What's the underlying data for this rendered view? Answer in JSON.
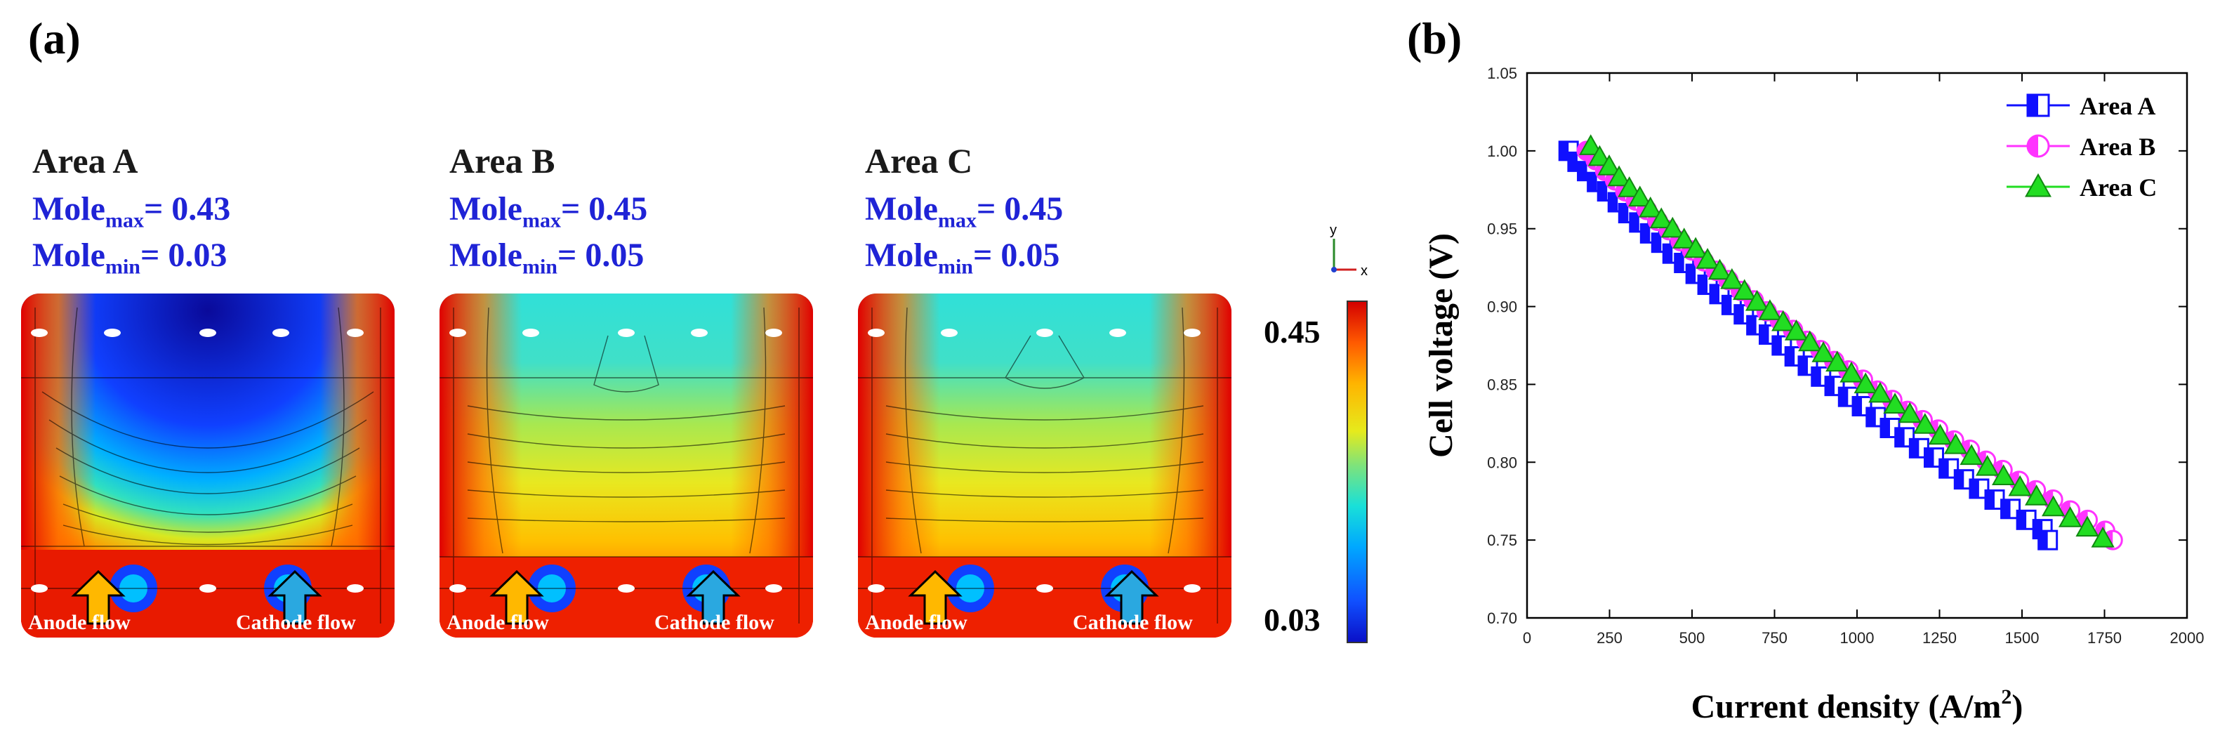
{
  "panel_a_label": "(a)",
  "panel_b_label": "(b)",
  "areas": [
    {
      "title": "Area A",
      "mole_max_label": "Mole",
      "mole_max_sub": "max",
      "mole_max_value": "= 0.43",
      "mole_min_label": "Mole",
      "mole_min_sub": "min",
      "mole_min_value": "= 0.03",
      "anode_label": "Anode flow",
      "cathode_label": "Cathode flow"
    },
    {
      "title": "Area B",
      "mole_max_label": "Mole",
      "mole_max_sub": "max",
      "mole_max_value": "= 0.45",
      "mole_min_label": "Mole",
      "mole_min_sub": "min",
      "mole_min_value": "= 0.05",
      "anode_label": "Anode flow",
      "cathode_label": "Cathode flow"
    },
    {
      "title": "Area C",
      "mole_max_label": "Mole",
      "mole_max_sub": "max",
      "mole_max_value": "= 0.45",
      "mole_min_label": "Mole",
      "mole_min_sub": "min",
      "mole_min_value": "= 0.05",
      "anode_label": "Anode flow",
      "cathode_label": "Cathode flow"
    }
  ],
  "colorbar": {
    "max_label": "0.45",
    "min_label": "0.03"
  },
  "axis_triad": {
    "x": "x",
    "y": "y"
  },
  "chart_data": {
    "type": "scatter",
    "title": "",
    "xlabel": "Current density (A/m",
    "xlabel_sup": "2",
    "xlabel_close": ")",
    "ylabel": "Cell voltage (V)",
    "xlim": [
      0,
      2000
    ],
    "ylim": [
      0.7,
      1.05
    ],
    "xticks": [
      0,
      250,
      500,
      750,
      1000,
      1250,
      1500,
      1750,
      2000
    ],
    "yticks": [
      0.7,
      0.75,
      0.8,
      0.85,
      0.9,
      0.95,
      1.0,
      1.05
    ],
    "xtick_labels": [
      "0",
      "250",
      "500",
      "750",
      "1000",
      "1250",
      "1500",
      "1750",
      "2000"
    ],
    "ytick_labels": [
      "0.70",
      "0.75",
      "0.80",
      "0.85",
      "0.90",
      "0.95",
      "1.00",
      "1.05"
    ],
    "legend_position": "top-right",
    "series": [
      {
        "name": "Area A",
        "color": "#1010ff",
        "marker": "half-square",
        "x": [
          126,
          153,
          182,
          212,
          243,
          275,
          307,
          340,
          373,
          407,
          441,
          476,
          511,
          547,
          583,
          620,
          657,
          695,
          733,
          772,
          811,
          851,
          891,
          932,
          973,
          1015,
          1057,
          1100,
          1144,
          1188,
          1233,
          1278,
          1324,
          1370,
          1417,
          1465,
          1513,
          1562,
          1578
        ],
        "y": [
          1.0,
          0.993,
          0.987,
          0.98,
          0.974,
          0.967,
          0.96,
          0.954,
          0.947,
          0.941,
          0.934,
          0.928,
          0.921,
          0.914,
          0.908,
          0.901,
          0.895,
          0.888,
          0.882,
          0.875,
          0.868,
          0.862,
          0.855,
          0.849,
          0.842,
          0.836,
          0.829,
          0.822,
          0.816,
          0.809,
          0.803,
          0.796,
          0.789,
          0.783,
          0.776,
          0.77,
          0.763,
          0.757,
          0.75
        ]
      },
      {
        "name": "Area B",
        "color": "#ff33ff",
        "marker": "half-circle",
        "x": [
          181,
          208,
          237,
          267,
          298,
          330,
          363,
          396,
          430,
          465,
          500,
          536,
          573,
          610,
          648,
          687,
          726,
          766,
          806,
          847,
          889,
          931,
          974,
          1018,
          1062,
          1107,
          1153,
          1199,
          1246,
          1294,
          1342,
          1391,
          1441,
          1491,
          1542,
          1594,
          1646,
          1699,
          1752,
          1775
        ],
        "y": [
          1.0,
          0.994,
          0.987,
          0.981,
          0.974,
          0.968,
          0.962,
          0.955,
          0.949,
          0.942,
          0.936,
          0.929,
          0.923,
          0.917,
          0.91,
          0.904,
          0.897,
          0.891,
          0.885,
          0.878,
          0.872,
          0.865,
          0.859,
          0.853,
          0.846,
          0.84,
          0.833,
          0.827,
          0.821,
          0.814,
          0.808,
          0.801,
          0.795,
          0.788,
          0.782,
          0.776,
          0.769,
          0.763,
          0.756,
          0.75
        ]
      },
      {
        "name": "Area C",
        "color": "#22dd22",
        "marker": "triangle",
        "x": [
          193,
          220,
          249,
          279,
          310,
          342,
          374,
          407,
          441,
          476,
          511,
          547,
          584,
          621,
          659,
          697,
          736,
          776,
          816,
          857,
          898,
          940,
          983,
          1026,
          1070,
          1115,
          1160,
          1206,
          1252,
          1299,
          1347,
          1395,
          1444,
          1494,
          1544,
          1595,
          1646,
          1698,
          1745
        ],
        "y": [
          1.003,
          0.996,
          0.99,
          0.983,
          0.976,
          0.97,
          0.963,
          0.956,
          0.95,
          0.943,
          0.937,
          0.93,
          0.923,
          0.917,
          0.91,
          0.903,
          0.897,
          0.89,
          0.884,
          0.877,
          0.87,
          0.864,
          0.857,
          0.85,
          0.844,
          0.837,
          0.831,
          0.824,
          0.817,
          0.811,
          0.804,
          0.797,
          0.791,
          0.784,
          0.778,
          0.771,
          0.764,
          0.758,
          0.751
        ]
      }
    ]
  }
}
